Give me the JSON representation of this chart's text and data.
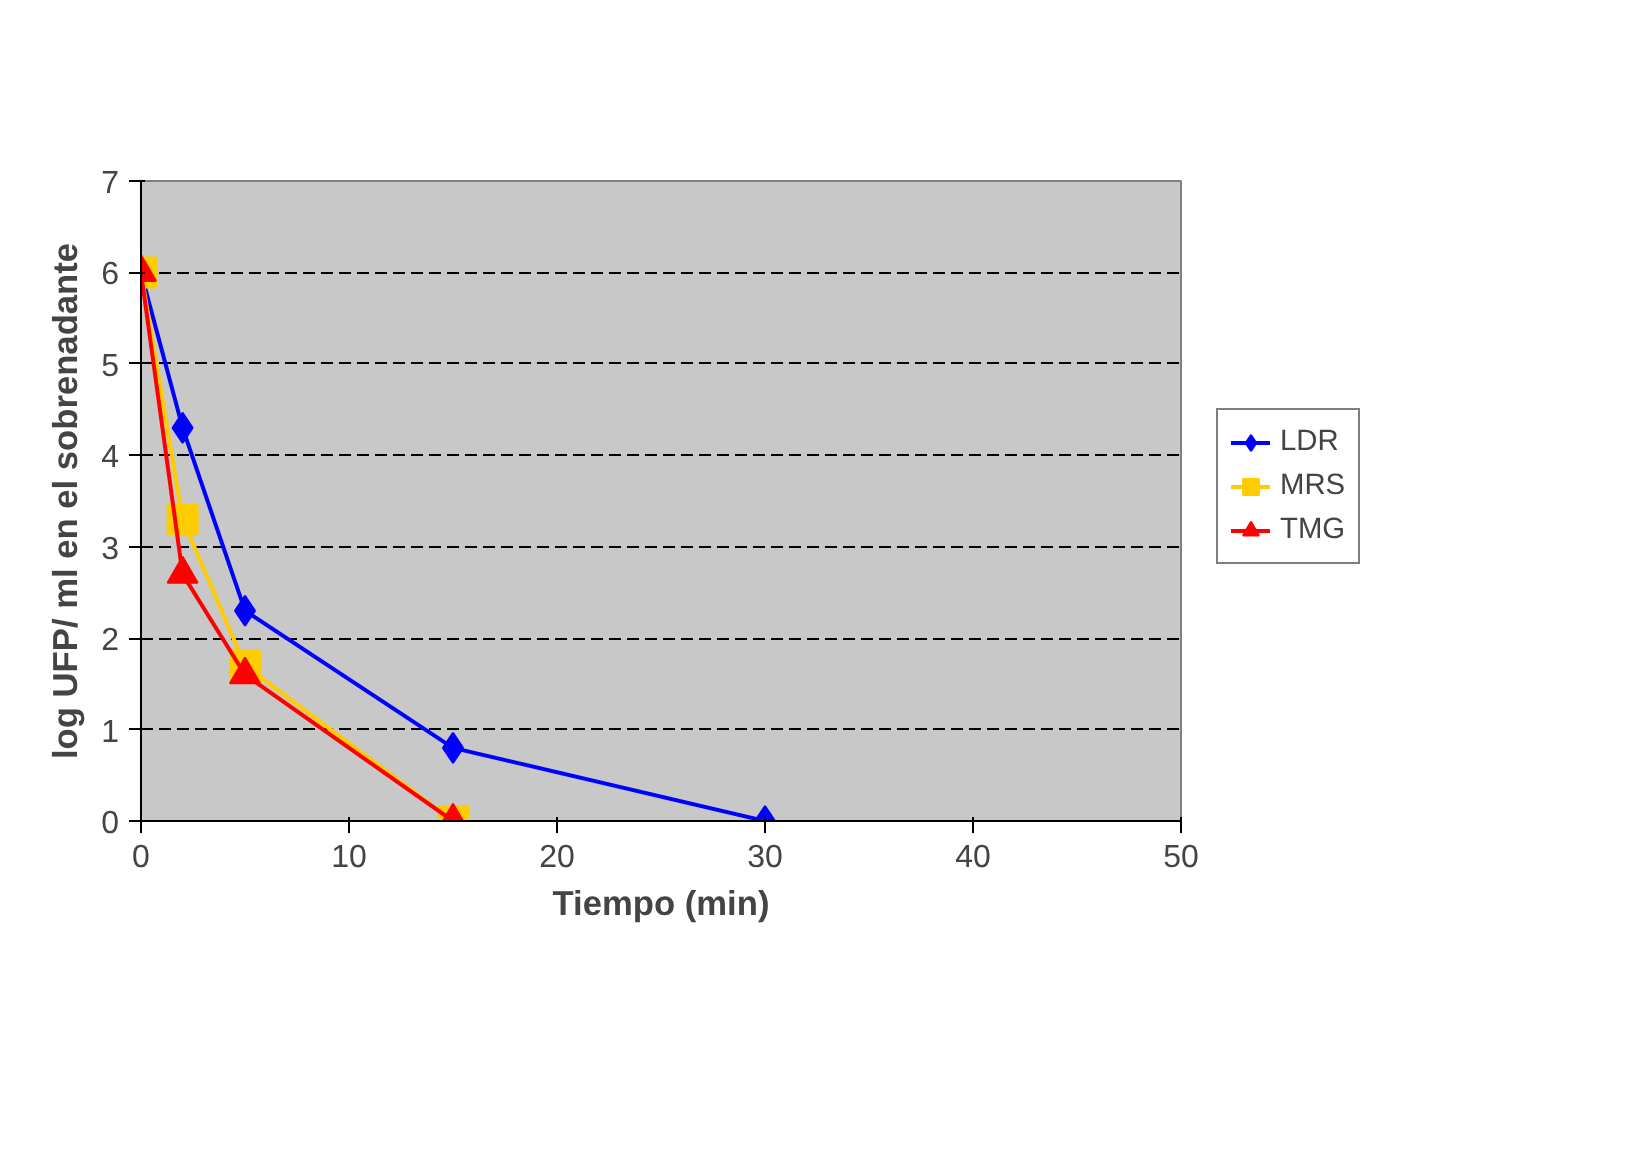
{
  "chart_data": {
    "type": "line",
    "xlabel": "Tiempo (min)",
    "ylabel": "log UFP/ ml en el sobrenadante",
    "xlim": [
      0,
      50
    ],
    "xticks": [
      0,
      10,
      20,
      30,
      40,
      50
    ],
    "ylim": [
      0,
      7
    ],
    "yticks": [
      0,
      1,
      2,
      3,
      4,
      5,
      6,
      7
    ],
    "grid": "y",
    "legend": "right",
    "line_style": "solid",
    "series": [
      {
        "name": "LDR",
        "color": "#0000ff",
        "marker": "diamond",
        "x": [
          0,
          2,
          5,
          15,
          30
        ],
        "values": [
          6,
          4.3,
          2.3,
          0.8,
          0
        ]
      },
      {
        "name": "MRS",
        "color": "#ffcc00",
        "marker": "square",
        "x": [
          0,
          2,
          5,
          15
        ],
        "values": [
          6,
          3.3,
          1.7,
          0
        ]
      },
      {
        "name": "TMG",
        "color": "#ff0000",
        "marker": "triangle",
        "x": [
          0,
          2,
          5,
          15
        ],
        "values": [
          6,
          2.7,
          1.6,
          0
        ]
      }
    ]
  }
}
